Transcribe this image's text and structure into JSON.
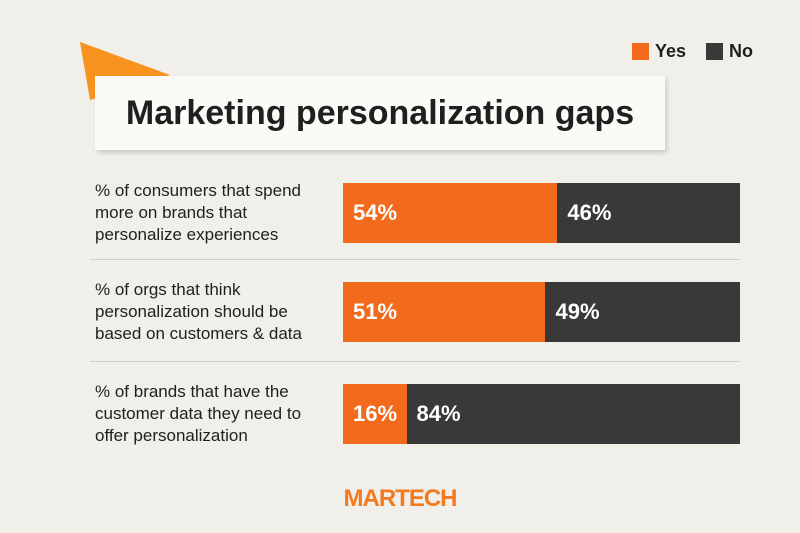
{
  "chart_data": {
    "type": "stacked-bar-horizontal",
    "title": "Marketing personalization gaps",
    "categories": [
      "% of consumers that spend more on brands that personalize experiences",
      "% of orgs that think personalization should be based on customers & data",
      "% of brands that have the customer data they need to offer personalization"
    ],
    "series": [
      {
        "name": "Yes",
        "color": "#f26a1b",
        "values": [
          54,
          51,
          16
        ],
        "value_labels": [
          "54%",
          "51%",
          "16%"
        ]
      },
      {
        "name": "No",
        "color": "#393939",
        "values": [
          46,
          49,
          84
        ],
        "value_labels": [
          "46%",
          "49%",
          "84%"
        ]
      }
    ],
    "legend": "top-right"
  },
  "brand": "MARTECH"
}
